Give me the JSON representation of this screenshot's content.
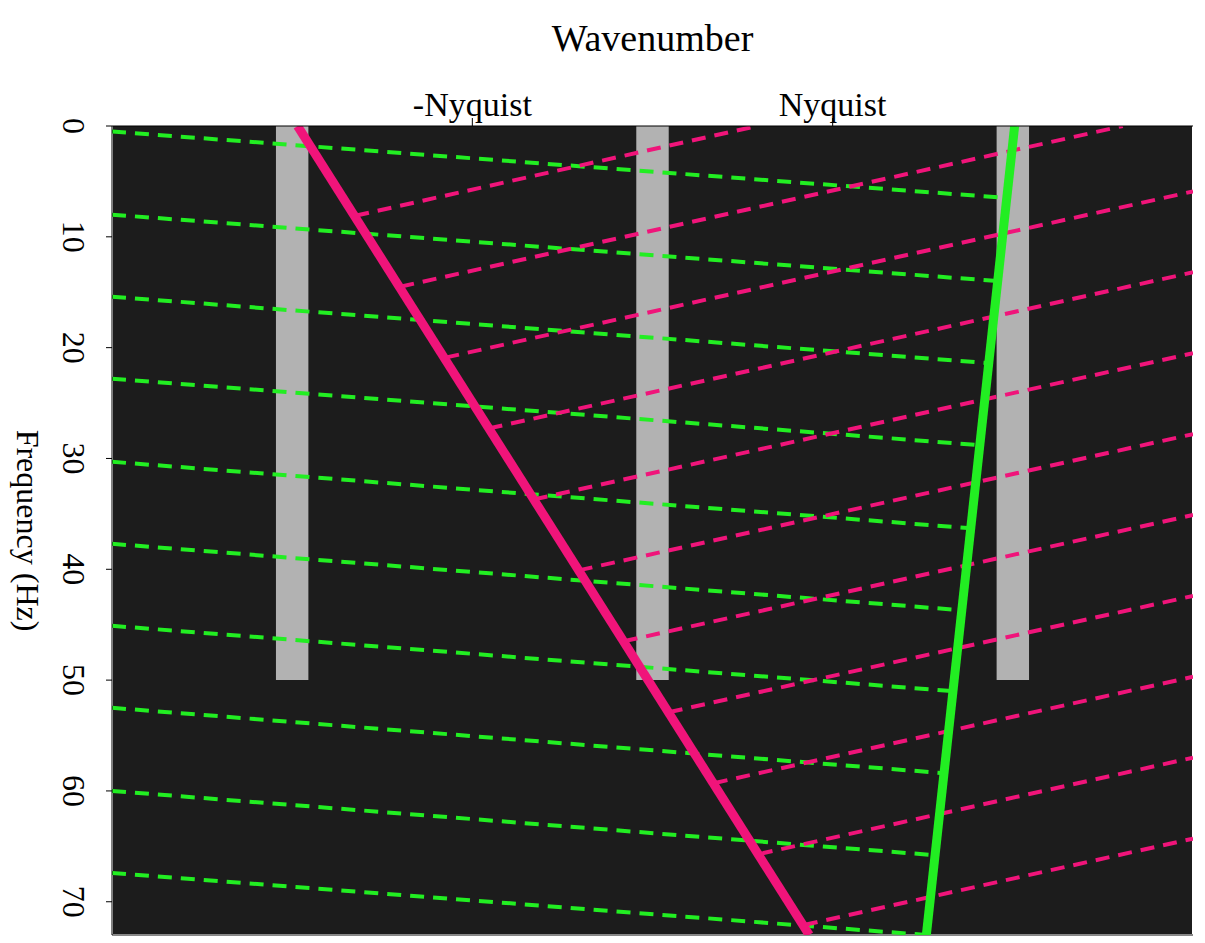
{
  "chart_data": {
    "type": "line",
    "xlabel": "Wavenumber",
    "ylabel": "Frequency (Hz)",
    "xlim": [
      -3,
      3
    ],
    "xticks": [
      {
        "value": -1,
        "label": "-Nyquist"
      },
      {
        "value": 1,
        "label": "Nyquist"
      }
    ],
    "ylim": [
      0,
      73
    ],
    "yticks": [
      0,
      10,
      20,
      30,
      40,
      50,
      60,
      70
    ],
    "grid": true,
    "series": [
      {
        "type": "band",
        "color": "#d8d8d8",
        "x": [
          -2.0,
          0.0,
          2.0
        ],
        "values": [
          50,
          50,
          50
        ]
      },
      {
        "color": "#22ee22",
        "line_style": "dashed",
        "x": [
          -3,
          1.97
        ],
        "values": [
          0.5,
          6.5
        ]
      },
      {
        "color": "#22ee22",
        "line_style": "dashed",
        "x": [
          -3,
          1.92
        ],
        "values": [
          8.0,
          14.0
        ]
      },
      {
        "color": "#22ee22",
        "line_style": "dashed",
        "x": [
          -3,
          1.87
        ],
        "values": [
          15.4,
          21.4
        ]
      },
      {
        "color": "#22ee22",
        "line_style": "dashed",
        "x": [
          -3,
          1.82
        ],
        "values": [
          22.8,
          28.8
        ]
      },
      {
        "color": "#22ee22",
        "line_style": "dashed",
        "x": [
          -3,
          1.77
        ],
        "values": [
          30.3,
          36.3
        ]
      },
      {
        "color": "#22ee22",
        "line_style": "dashed",
        "x": [
          -3,
          1.72
        ],
        "values": [
          37.7,
          43.7
        ]
      },
      {
        "color": "#22ee22",
        "line_style": "dashed",
        "x": [
          -3,
          1.67
        ],
        "values": [
          45.1,
          51.0
        ]
      },
      {
        "color": "#22ee22",
        "line_style": "dashed",
        "x": [
          -3,
          1.62
        ],
        "values": [
          52.5,
          58.4
        ]
      },
      {
        "color": "#22ee22",
        "line_style": "dashed",
        "x": [
          -3,
          1.57
        ],
        "values": [
          60.0,
          65.8
        ]
      },
      {
        "color": "#22ee22",
        "line_style": "dashed",
        "x": [
          -3,
          1.52
        ],
        "values": [
          67.4,
          73.0
        ]
      },
      {
        "color": "#f0147a",
        "line_style": "dashed",
        "x": [
          -1.65,
          0.58
        ],
        "values": [
          8.1,
          0
        ]
      },
      {
        "color": "#f0147a",
        "line_style": "dashed",
        "x": [
          -1.4,
          2.61
        ],
        "values": [
          14.5,
          0
        ]
      },
      {
        "color": "#f0147a",
        "line_style": "dashed",
        "x": [
          -1.15,
          3
        ],
        "values": [
          20.9,
          5.9
        ]
      },
      {
        "color": "#f0147a",
        "line_style": "dashed",
        "x": [
          -0.91,
          3
        ],
        "values": [
          27.3,
          13.2
        ]
      },
      {
        "color": "#f0147a",
        "line_style": "dashed",
        "x": [
          -0.66,
          3
        ],
        "values": [
          33.7,
          20.5
        ]
      },
      {
        "color": "#f0147a",
        "line_style": "dashed",
        "x": [
          -0.41,
          3
        ],
        "values": [
          40.1,
          27.8
        ]
      },
      {
        "color": "#f0147a",
        "line_style": "dashed",
        "x": [
          -0.16,
          3
        ],
        "values": [
          46.5,
          35.1
        ]
      },
      {
        "color": "#f0147a",
        "line_style": "dashed",
        "x": [
          0.09,
          3
        ],
        "values": [
          52.9,
          42.4
        ]
      },
      {
        "color": "#f0147a",
        "line_style": "dashed",
        "x": [
          0.34,
          3
        ],
        "values": [
          59.3,
          49.7
        ]
      },
      {
        "color": "#f0147a",
        "line_style": "dashed",
        "x": [
          0.59,
          3
        ],
        "values": [
          65.7,
          57.0
        ]
      },
      {
        "color": "#f0147a",
        "line_style": "dashed",
        "x": [
          0.84,
          3
        ],
        "values": [
          72.1,
          64.3
        ]
      },
      {
        "color": "#f0147a",
        "line_style": "solid",
        "x": [
          -1.97,
          0.87
        ],
        "values": [
          0,
          73
        ]
      },
      {
        "color": "#22ee22",
        "line_style": "solid",
        "x": [
          2.01,
          1.52
        ],
        "values": [
          0,
          73
        ]
      }
    ]
  }
}
